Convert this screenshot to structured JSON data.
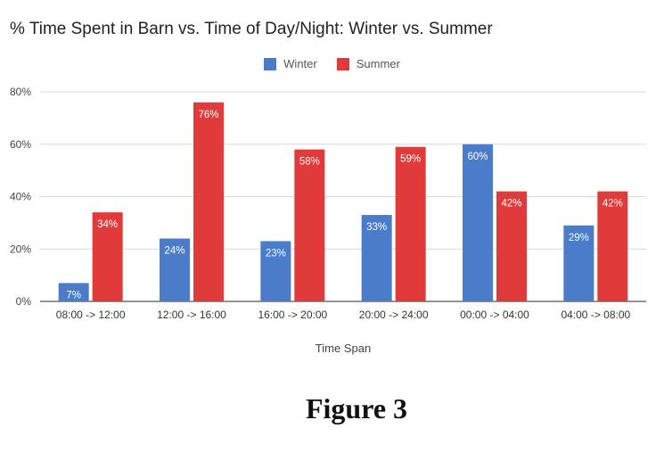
{
  "chart_data": {
    "type": "bar",
    "title": "% Time Spent in Barn vs. Time of Day/Night:  Winter vs. Summer",
    "xlabel": "Time Span",
    "ylabel": "",
    "categories": [
      "08:00 -> 12:00",
      "12:00 -> 16:00",
      "16:00 -> 20:00",
      "20:00 -> 24:00",
      "00:00 -> 04:00",
      "04:00 -> 08:00"
    ],
    "series": [
      {
        "name": "Winter",
        "color": "#4a7cc9",
        "values": [
          7,
          24,
          23,
          33,
          60,
          29
        ],
        "labels": [
          "7%",
          "24%",
          "23%",
          "33%",
          "60%",
          "29%"
        ]
      },
      {
        "name": "Summer",
        "color": "#e03a3a",
        "values": [
          34,
          76,
          58,
          59,
          42,
          42
        ],
        "labels": [
          "34%",
          "76%",
          "58%",
          "59%",
          "42%",
          "42%"
        ]
      }
    ],
    "ylim": [
      0,
      80
    ],
    "yticks": [
      0,
      20,
      40,
      60,
      80
    ],
    "ytick_labels": [
      "0%",
      "20%",
      "40%",
      "60%",
      "80%"
    ],
    "grid": true,
    "legend_position": "top-center"
  },
  "caption": "Figure 3"
}
